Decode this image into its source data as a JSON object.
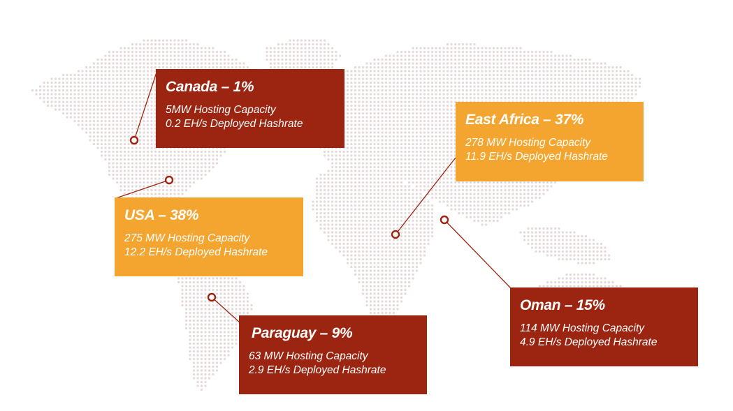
{
  "colors": {
    "dark_red": "#9b2510",
    "orange": "#f4a52f",
    "dot": "#e4d8d8",
    "marker": "#9b2510"
  },
  "regions": [
    {
      "id": "canada",
      "title": "Canada – 1%",
      "capacity": "5MW Hosting Capacity",
      "hashrate": "0.2 EH/s Deployed Hashrate",
      "share_percent": 1,
      "color": "dark_red"
    },
    {
      "id": "east_africa",
      "title": "East Africa – 37%",
      "capacity": "278 MW Hosting Capacity",
      "hashrate": "11.9 EH/s Deployed Hashrate",
      "share_percent": 37,
      "color": "orange"
    },
    {
      "id": "usa",
      "title": "USA – 38%",
      "capacity": "275 MW Hosting Capacity",
      "hashrate": "12.2 EH/s Deployed Hashrate",
      "share_percent": 38,
      "color": "orange"
    },
    {
      "id": "paraguay",
      "title": "Paraguay – 9%",
      "capacity": "63 MW Hosting Capacity",
      "hashrate": "2.9 EH/s Deployed Hashrate",
      "share_percent": 9,
      "color": "dark_red"
    },
    {
      "id": "oman",
      "title": "Oman – 15%",
      "capacity": "114 MW Hosting Capacity",
      "hashrate": "4.9 EH/s Deployed Hashrate",
      "share_percent": 15,
      "color": "dark_red"
    }
  ]
}
